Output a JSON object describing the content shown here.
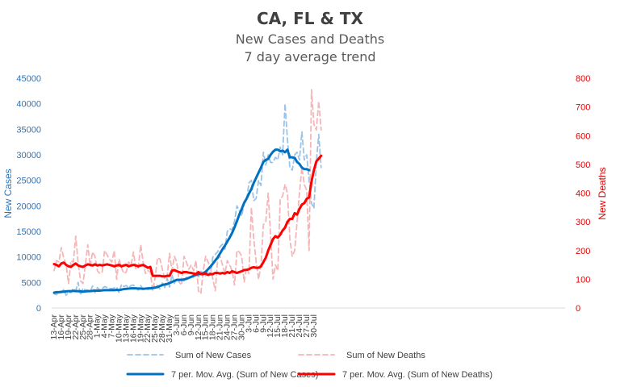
{
  "chart_data": {
    "type": "line",
    "title": "CA, FL & TX",
    "subtitle_lines": [
      "New Cases and Deaths",
      "7 day average trend"
    ],
    "ylabel_left": "New Cases",
    "ylabel_right": "New Deaths",
    "ylim_left": [
      0,
      45000
    ],
    "ylim_right": [
      0,
      800
    ],
    "yticks_left": [
      "0",
      "5000",
      "10000",
      "15000",
      "20000",
      "25000",
      "30000",
      "35000",
      "40000",
      "45000"
    ],
    "yticks_right": [
      "0",
      "100",
      "200",
      "300",
      "400",
      "500",
      "600",
      "700",
      "800"
    ],
    "x_tick_labels": [
      "13-Apr",
      "16-Apr",
      "19-Apr",
      "22-Apr",
      "25-Apr",
      "28-Apr",
      "1-May",
      "4-May",
      "7-May",
      "10-May",
      "13-May",
      "16-May",
      "19-May",
      "22-May",
      "25-May",
      "28-May",
      "31-May",
      "3-Jun",
      "6-Jun",
      "9-Jun",
      "12-Jun",
      "15-Jun",
      "18-Jun",
      "21-Jun",
      "24-Jun",
      "27-Jun",
      "30-Jun",
      "3-Jul",
      "6-Jul",
      "9-Jul",
      "12-Jul",
      "15-Jul",
      "18-Jul",
      "21-Jul",
      "24-Jul",
      "27-Jul",
      "30-Jul"
    ],
    "x_start": "13-Apr",
    "x_end": "31-Jul",
    "grid": false,
    "legend_position": "bottom",
    "series": [
      {
        "name": "Sum of New Cases",
        "axis": "left",
        "style": "dashed",
        "color": "#9dc3e6",
        "values": [
          2800,
          2600,
          3200,
          3000,
          3600,
          2500,
          3100,
          3000,
          3800,
          3400,
          5000,
          2500,
          3900,
          3500,
          3500,
          3200,
          4300,
          3000,
          4000,
          3500,
          3800,
          4200,
          4000,
          3800,
          3800,
          3900,
          4100,
          3000,
          4600,
          4200,
          4400,
          4000,
          4400,
          4500,
          4000,
          3500,
          4400,
          3700,
          4000,
          3600,
          4300,
          3800,
          4500,
          4400,
          3700,
          4900,
          4000,
          5800,
          4100,
          6500,
          4800,
          5900,
          5400,
          5800,
          5300,
          6000,
          5800,
          6200,
          6000,
          6500,
          6100,
          7200,
          6800,
          6300,
          7300,
          6500,
          10000,
          10500,
          11000,
          12000,
          12500,
          11500,
          15000,
          15500,
          15300,
          17000,
          20000,
          19000,
          18000,
          20500,
          21000,
          24500,
          25000,
          21000,
          21500,
          25000,
          24000,
          30500,
          28000,
          30000,
          28500,
          28500,
          29500,
          29000,
          31500,
          30000,
          40000,
          33000,
          27500,
          27000,
          30000,
          30500,
          29000,
          34500,
          29000,
          30000,
          25000,
          20500,
          19500,
          28500,
          34000,
          27500
        ]
      },
      {
        "name": "Sum of New Deaths",
        "axis": "right",
        "style": "dashed",
        "color": "#f4b6b8",
        "values": [
          130,
          165,
          160,
          210,
          175,
          150,
          85,
          165,
          160,
          250,
          155,
          95,
          85,
          150,
          220,
          145,
          195,
          180,
          130,
          120,
          125,
          200,
          185,
          170,
          160,
          200,
          100,
          170,
          140,
          120,
          125,
          160,
          150,
          195,
          135,
          140,
          220,
          160,
          120,
          130,
          125,
          60,
          105,
          175,
          170,
          135,
          100,
          110,
          190,
          130,
          180,
          160,
          90,
          80,
          180,
          160,
          135,
          150,
          130,
          165,
          60,
          50,
          130,
          180,
          160,
          140,
          100,
          60,
          170,
          180,
          150,
          120,
          165,
          150,
          130,
          80,
          200,
          195,
          180,
          90,
          140,
          120,
          350,
          240,
          160,
          100,
          150,
          290,
          300,
          400,
          250,
          100,
          150,
          130,
          380,
          390,
          430,
          400,
          240,
          180,
          200,
          300,
          400,
          490,
          430,
          410,
          200,
          760,
          640,
          620,
          720,
          620
        ]
      },
      {
        "name": "7 per. Mov. Avg. (Sum of New Cases)",
        "axis": "left",
        "style": "solid",
        "color": "#0070c0",
        "values": [
          3000,
          3100,
          3100,
          3150,
          3200,
          3250,
          3300,
          3300,
          3350,
          3300,
          3300,
          3250,
          3200,
          3250,
          3300,
          3300,
          3350,
          3400,
          3400,
          3400,
          3450,
          3500,
          3500,
          3500,
          3500,
          3500,
          3550,
          3500,
          3600,
          3700,
          3750,
          3800,
          3850,
          3850,
          3850,
          3800,
          3800,
          3750,
          3800,
          3850,
          3850,
          3900,
          4000,
          4100,
          4300,
          4500,
          4600,
          4700,
          4900,
          5100,
          5300,
          5500,
          5500,
          5500,
          5600,
          5700,
          5900,
          6100,
          6300,
          6500,
          6600,
          6700,
          6800,
          7100,
          7600,
          8100,
          8700,
          9300,
          9900,
          10700,
          11500,
          12200,
          13000,
          13800,
          14700,
          15800,
          17000,
          18300,
          19400,
          20600,
          21400,
          22400,
          23300,
          24500,
          25500,
          26500,
          27500,
          28600,
          29000,
          29200,
          30000,
          30600,
          31000,
          31000,
          30700,
          30800,
          30500,
          31000,
          29500,
          29500,
          29400,
          28600,
          28200,
          27500,
          27200,
          27200,
          27000
        ]
      },
      {
        "name": "7 per. Mov. Avg. (Sum of New Deaths)",
        "axis": "right",
        "style": "solid",
        "color": "#ff0000",
        "values": [
          153,
          150,
          145,
          155,
          158,
          150,
          145,
          143,
          150,
          155,
          148,
          145,
          143,
          148,
          152,
          150,
          148,
          152,
          148,
          150,
          148,
          150,
          152,
          150,
          148,
          145,
          148,
          150,
          145,
          148,
          150,
          145,
          148,
          150,
          148,
          145,
          148,
          150,
          145,
          140,
          143,
          112,
          112,
          112,
          112,
          110,
          110,
          112,
          112,
          130,
          132,
          128,
          125,
          122,
          125,
          125,
          123,
          122,
          120,
          118,
          125,
          118,
          118,
          120,
          115,
          118,
          118,
          122,
          122,
          120,
          122,
          120,
          125,
          122,
          128,
          125,
          122,
          125,
          128,
          132,
          133,
          135,
          140,
          142,
          140,
          140,
          145,
          160,
          175,
          200,
          220,
          240,
          250,
          245,
          255,
          270,
          280,
          300,
          310,
          310,
          330,
          325,
          345,
          360,
          365,
          380,
          385,
          440,
          480,
          510,
          520,
          530
        ]
      }
    ]
  }
}
